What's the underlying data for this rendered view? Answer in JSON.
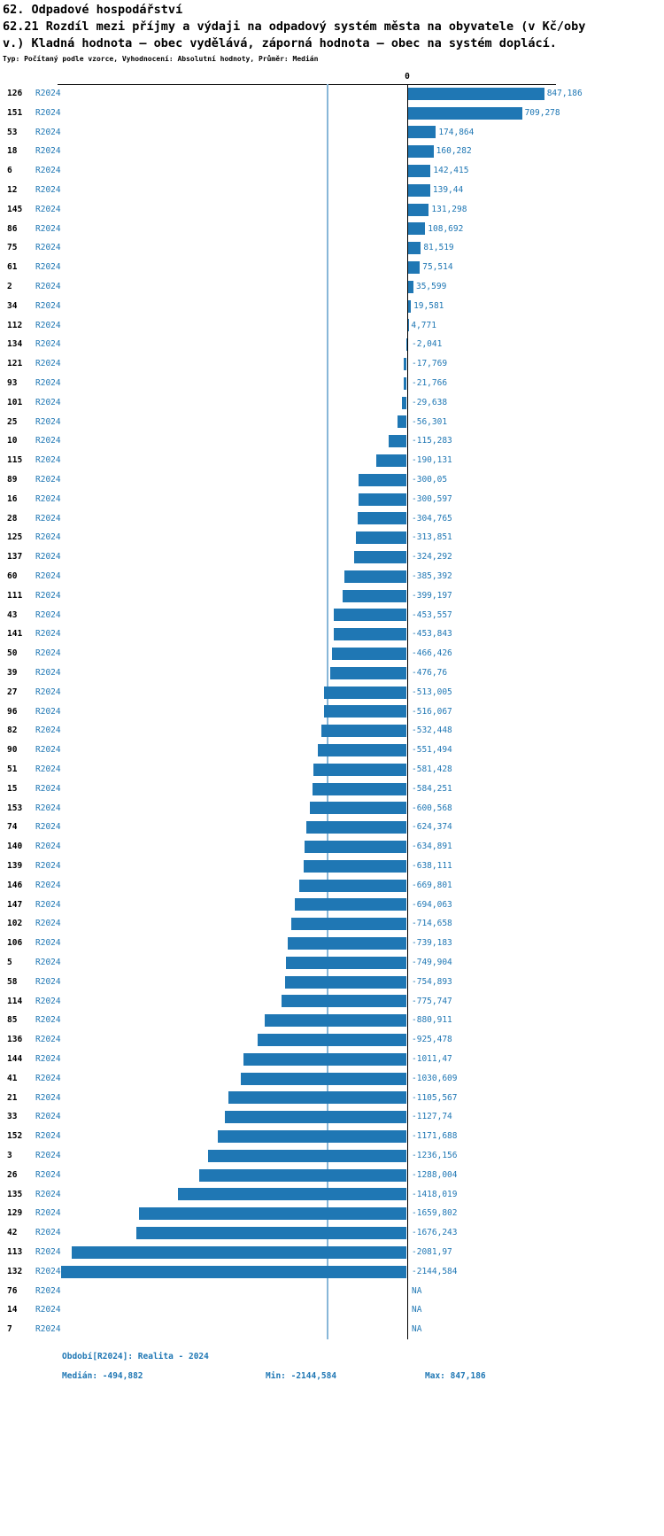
{
  "header": {
    "title": "62. Odpadové hospodářství",
    "subtitle_line1": "62.21 Rozdíl mezi příjmy a výdaji na odpadový systém města na obyvatele (v Kč/oby",
    "subtitle_line2": "v.) Kladná hodnota – obec vydělává, záporná hodnota – obec na systém doplácí.",
    "meta": "Typ: Počítaný podle vzorce, Vyhodnocení: Absolutní hodnoty, Průměr: Medián"
  },
  "chart_data": {
    "type": "bar",
    "orientation": "horizontal",
    "series_label": "R2024",
    "zero_label": "0",
    "median_value": -494.882,
    "min_value": -2144.584,
    "max_value": 847.186,
    "xlim": [
      -2170,
      934
    ],
    "bar_color": "#1f77b4",
    "median_line_color": "#88b7d8",
    "rows": [
      {
        "id": "126",
        "label": "847,186",
        "value": 847.186
      },
      {
        "id": "151",
        "label": "709,278",
        "value": 709.278
      },
      {
        "id": "53",
        "label": "174,864",
        "value": 174.864
      },
      {
        "id": "18",
        "label": "160,282",
        "value": 160.282
      },
      {
        "id": "6",
        "label": "142,415",
        "value": 142.415
      },
      {
        "id": "12",
        "label": "139,44",
        "value": 139.44
      },
      {
        "id": "145",
        "label": "131,298",
        "value": 131.298
      },
      {
        "id": "86",
        "label": "108,692",
        "value": 108.692
      },
      {
        "id": "75",
        "label": "81,519",
        "value": 81.519
      },
      {
        "id": "61",
        "label": "75,514",
        "value": 75.514
      },
      {
        "id": "2",
        "label": "35,599",
        "value": 35.599
      },
      {
        "id": "34",
        "label": "19,581",
        "value": 19.581
      },
      {
        "id": "112",
        "label": "4,771",
        "value": 4.771
      },
      {
        "id": "134",
        "label": "-2,041",
        "value": -2.041
      },
      {
        "id": "121",
        "label": "-17,769",
        "value": -17.769
      },
      {
        "id": "93",
        "label": "-21,766",
        "value": -21.766
      },
      {
        "id": "101",
        "label": "-29,638",
        "value": -29.638
      },
      {
        "id": "25",
        "label": "-56,301",
        "value": -56.301
      },
      {
        "id": "10",
        "label": "-115,283",
        "value": -115.283
      },
      {
        "id": "115",
        "label": "-190,131",
        "value": -190.131
      },
      {
        "id": "89",
        "label": "-300,05",
        "value": -300.05
      },
      {
        "id": "16",
        "label": "-300,597",
        "value": -300.597
      },
      {
        "id": "28",
        "label": "-304,765",
        "value": -304.765
      },
      {
        "id": "125",
        "label": "-313,851",
        "value": -313.851
      },
      {
        "id": "137",
        "label": "-324,292",
        "value": -324.292
      },
      {
        "id": "60",
        "label": "-385,392",
        "value": -385.392
      },
      {
        "id": "111",
        "label": "-399,197",
        "value": -399.197
      },
      {
        "id": "43",
        "label": "-453,557",
        "value": -453.557
      },
      {
        "id": "141",
        "label": "-453,843",
        "value": -453.843
      },
      {
        "id": "50",
        "label": "-466,426",
        "value": -466.426
      },
      {
        "id": "39",
        "label": "-476,76",
        "value": -476.76
      },
      {
        "id": "27",
        "label": "-513,005",
        "value": -513.005
      },
      {
        "id": "96",
        "label": "-516,067",
        "value": -516.067
      },
      {
        "id": "82",
        "label": "-532,448",
        "value": -532.448
      },
      {
        "id": "90",
        "label": "-551,494",
        "value": -551.494
      },
      {
        "id": "51",
        "label": "-581,428",
        "value": -581.428
      },
      {
        "id": "15",
        "label": "-584,251",
        "value": -584.251
      },
      {
        "id": "153",
        "label": "-600,568",
        "value": -600.568
      },
      {
        "id": "74",
        "label": "-624,374",
        "value": -624.374
      },
      {
        "id": "140",
        "label": "-634,891",
        "value": -634.891
      },
      {
        "id": "139",
        "label": "-638,111",
        "value": -638.111
      },
      {
        "id": "146",
        "label": "-669,801",
        "value": -669.801
      },
      {
        "id": "147",
        "label": "-694,063",
        "value": -694.063
      },
      {
        "id": "102",
        "label": "-714,658",
        "value": -714.658
      },
      {
        "id": "106",
        "label": "-739,183",
        "value": -739.183
      },
      {
        "id": "5",
        "label": "-749,904",
        "value": -749.904
      },
      {
        "id": "58",
        "label": "-754,893",
        "value": -754.893
      },
      {
        "id": "114",
        "label": "-775,747",
        "value": -775.747
      },
      {
        "id": "85",
        "label": "-880,911",
        "value": -880.911
      },
      {
        "id": "136",
        "label": "-925,478",
        "value": -925.478
      },
      {
        "id": "144",
        "label": "-1011,47",
        "value": -1011.47
      },
      {
        "id": "41",
        "label": "-1030,609",
        "value": -1030.609
      },
      {
        "id": "21",
        "label": "-1105,567",
        "value": -1105.567
      },
      {
        "id": "33",
        "label": "-1127,74",
        "value": -1127.74
      },
      {
        "id": "152",
        "label": "-1171,688",
        "value": -1171.688
      },
      {
        "id": "3",
        "label": "-1236,156",
        "value": -1236.156
      },
      {
        "id": "26",
        "label": "-1288,004",
        "value": -1288.004
      },
      {
        "id": "135",
        "label": "-1418,019",
        "value": -1418.019
      },
      {
        "id": "129",
        "label": "-1659,802",
        "value": -1659.802
      },
      {
        "id": "42",
        "label": "-1676,243",
        "value": -1676.243
      },
      {
        "id": "113",
        "label": "-2081,97",
        "value": -2081.97
      },
      {
        "id": "132",
        "label": "-2144,584",
        "value": -2144.584
      },
      {
        "id": "76",
        "label": "NA",
        "value": null
      },
      {
        "id": "14",
        "label": "NA",
        "value": null
      },
      {
        "id": "7",
        "label": "NA",
        "value": null
      }
    ]
  },
  "footer": {
    "period": "Období[R2024]: Realita - 2024",
    "median": "Medián: -494,882",
    "min": "Min: -2144,584",
    "max": "Max: 847,186"
  }
}
